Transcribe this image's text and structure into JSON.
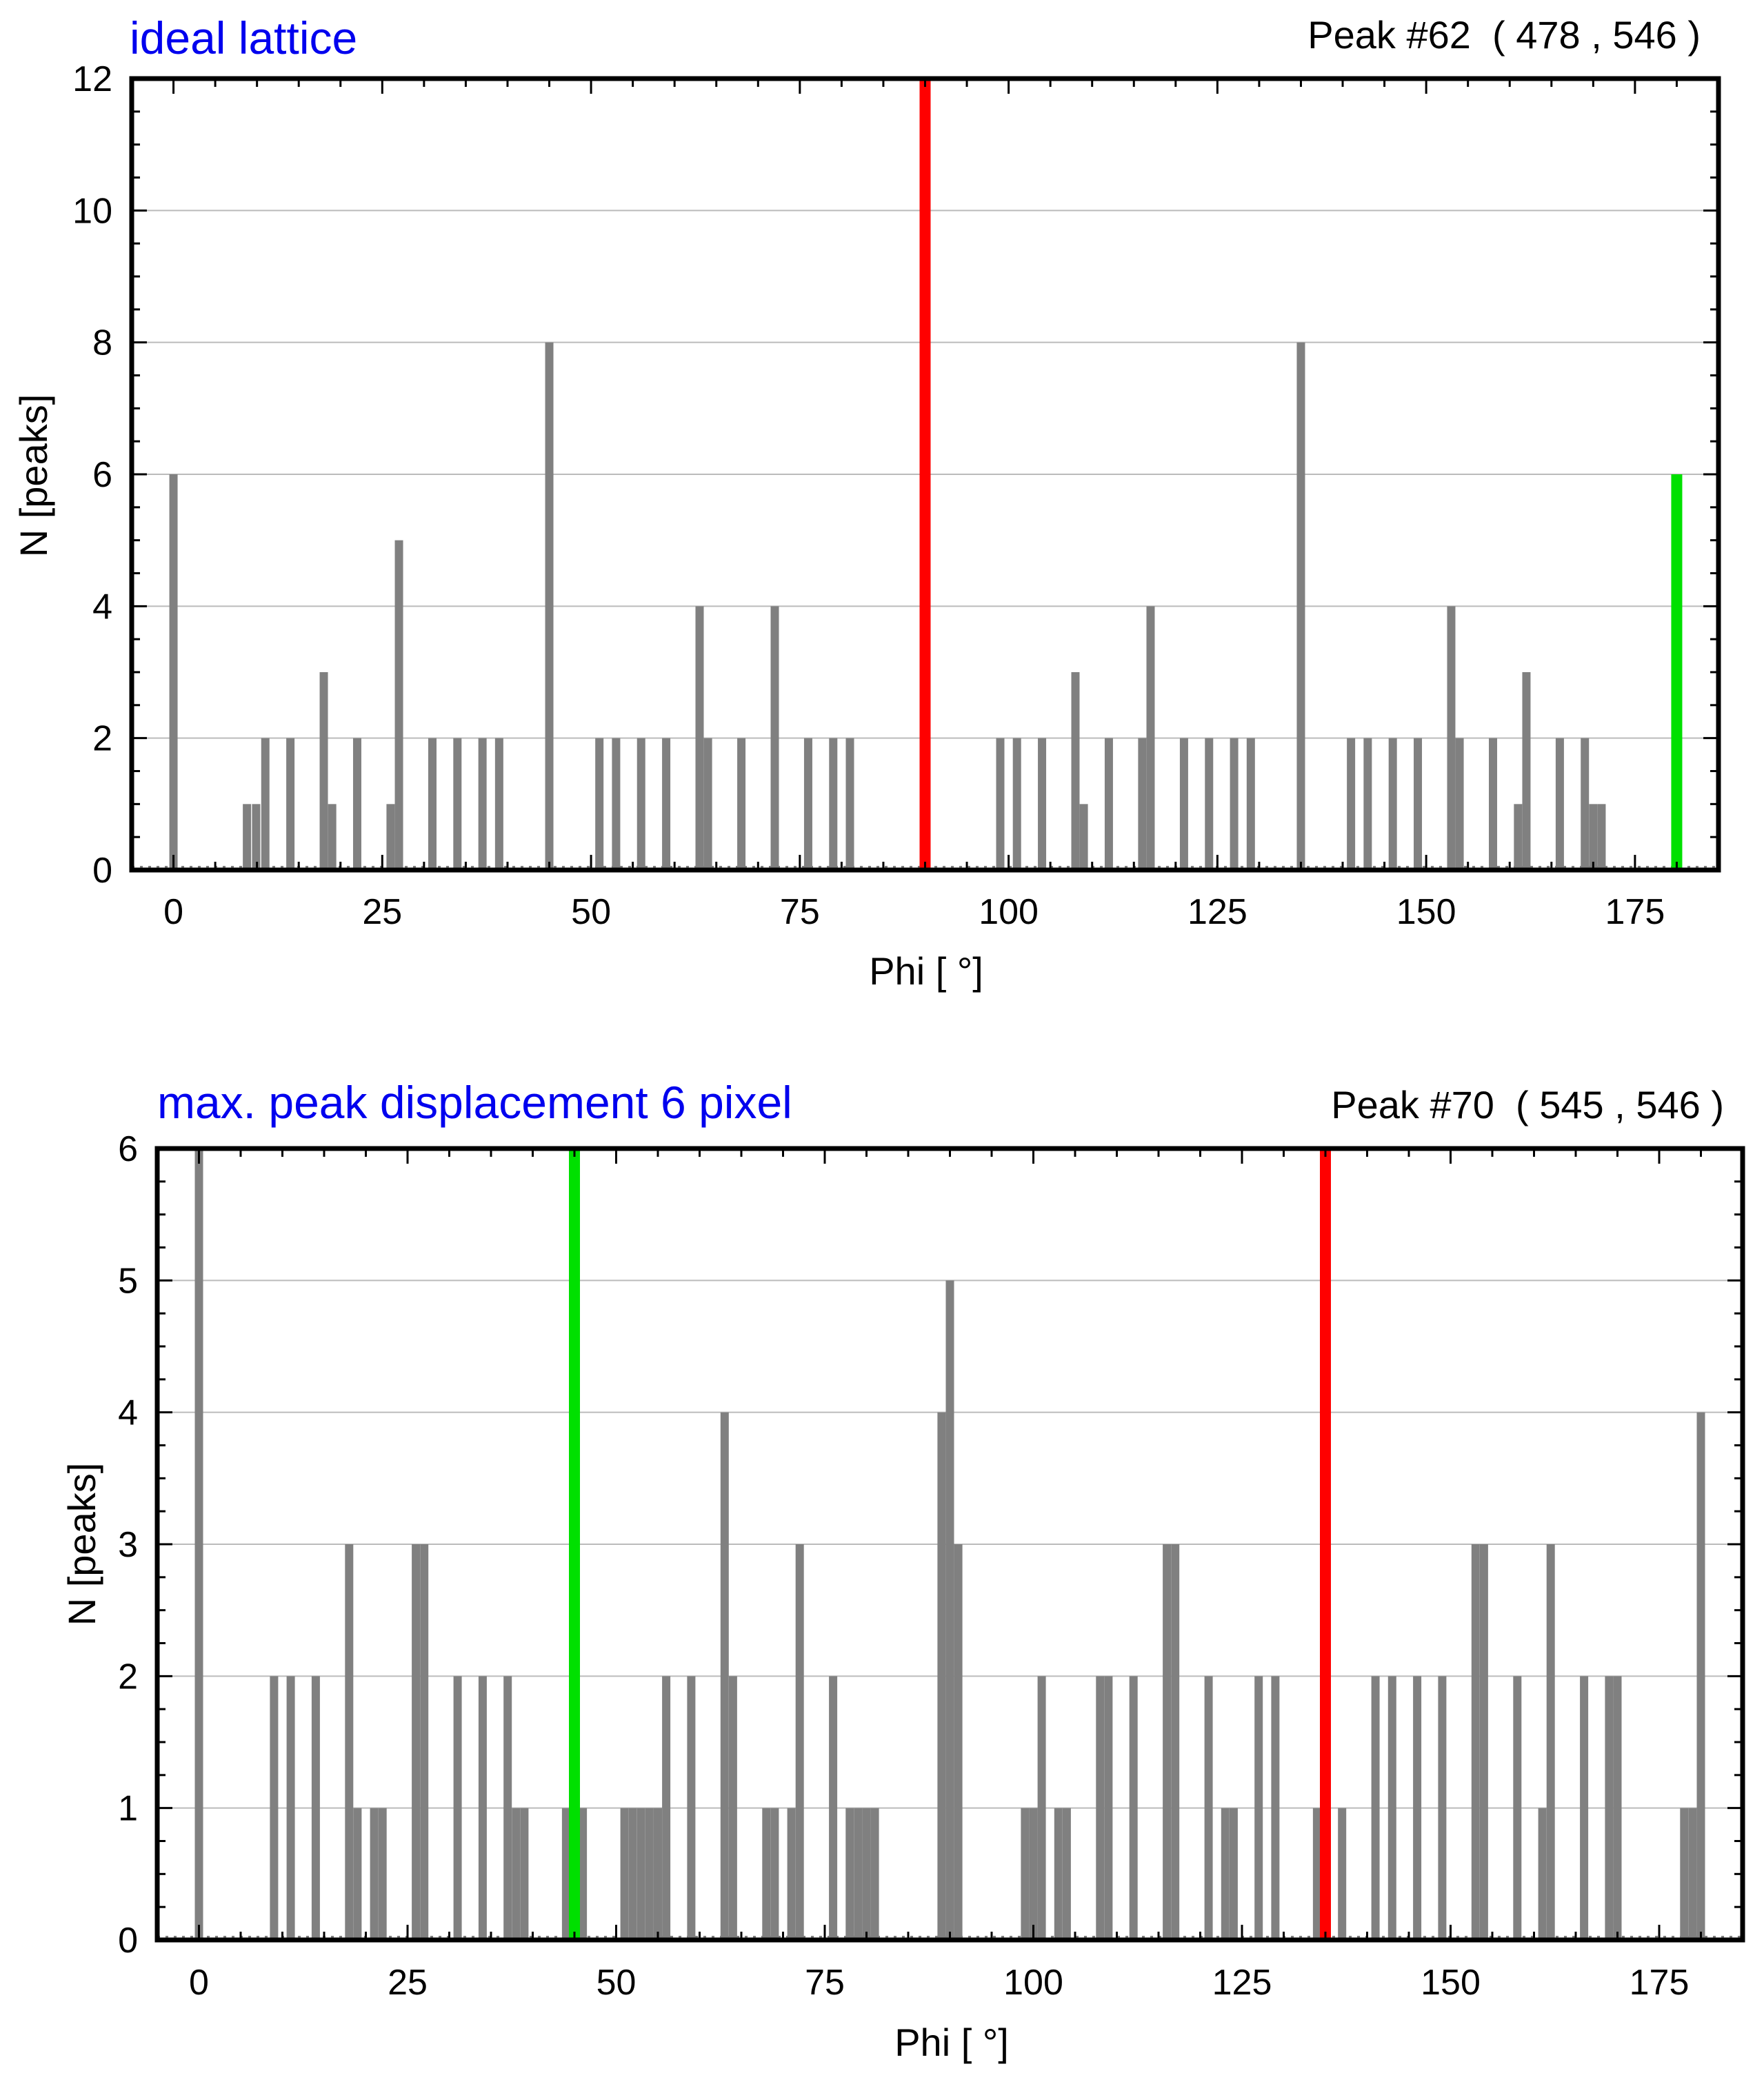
{
  "chart_data": [
    {
      "type": "bar",
      "title": "ideal lattice",
      "annotation": "Peak #62  ( 478 , 546 )",
      "xlabel": "Phi [ °]",
      "ylabel": "N [peaks]",
      "xlim": [
        -5,
        185
      ],
      "ylim": [
        0,
        12
      ],
      "xticks": [
        0,
        25,
        50,
        75,
        100,
        125,
        150,
        175
      ],
      "yticks": [
        0,
        2,
        4,
        6,
        8,
        10,
        12
      ],
      "grid": true,
      "colors": {
        "bar": "#808080",
        "red": "#ff0000",
        "green": "#00e000",
        "title": "#0000ee",
        "axis": "#000000",
        "grid": "#bbbbbb"
      },
      "bars": [
        {
          "x": 0,
          "y": 6
        },
        {
          "x": 8.8,
          "y": 1
        },
        {
          "x": 9.9,
          "y": 1
        },
        {
          "x": 11,
          "y": 2
        },
        {
          "x": 14,
          "y": 2
        },
        {
          "x": 18,
          "y": 3
        },
        {
          "x": 19,
          "y": 1
        },
        {
          "x": 22,
          "y": 2
        },
        {
          "x": 26,
          "y": 1
        },
        {
          "x": 27,
          "y": 5
        },
        {
          "x": 31,
          "y": 2
        },
        {
          "x": 34,
          "y": 2
        },
        {
          "x": 37,
          "y": 2
        },
        {
          "x": 39,
          "y": 2
        },
        {
          "x": 45,
          "y": 8
        },
        {
          "x": 51,
          "y": 2
        },
        {
          "x": 53,
          "y": 2
        },
        {
          "x": 56,
          "y": 2
        },
        {
          "x": 59,
          "y": 2
        },
        {
          "x": 63,
          "y": 4
        },
        {
          "x": 64,
          "y": 2
        },
        {
          "x": 68,
          "y": 2
        },
        {
          "x": 72,
          "y": 4
        },
        {
          "x": 76,
          "y": 2
        },
        {
          "x": 79,
          "y": 2
        },
        {
          "x": 81,
          "y": 2
        },
        {
          "x": 99,
          "y": 2
        },
        {
          "x": 101,
          "y": 2
        },
        {
          "x": 104,
          "y": 2
        },
        {
          "x": 108,
          "y": 3
        },
        {
          "x": 109,
          "y": 1
        },
        {
          "x": 112,
          "y": 2
        },
        {
          "x": 116,
          "y": 2
        },
        {
          "x": 117,
          "y": 4
        },
        {
          "x": 121,
          "y": 2
        },
        {
          "x": 124,
          "y": 2
        },
        {
          "x": 127,
          "y": 2
        },
        {
          "x": 129,
          "y": 2
        },
        {
          "x": 135,
          "y": 8
        },
        {
          "x": 141,
          "y": 2
        },
        {
          "x": 143,
          "y": 2
        },
        {
          "x": 146,
          "y": 2
        },
        {
          "x": 149,
          "y": 2
        },
        {
          "x": 153,
          "y": 4
        },
        {
          "x": 154,
          "y": 2
        },
        {
          "x": 158,
          "y": 2
        },
        {
          "x": 161,
          "y": 1
        },
        {
          "x": 162,
          "y": 3
        },
        {
          "x": 166,
          "y": 2
        },
        {
          "x": 169,
          "y": 2
        },
        {
          "x": 170,
          "y": 1
        },
        {
          "x": 171,
          "y": 1
        }
      ],
      "markers": [
        {
          "x": 90,
          "y": 12,
          "color": "red"
        },
        {
          "x": 180,
          "y": 6,
          "color": "green"
        }
      ]
    },
    {
      "type": "bar",
      "title": "max. peak displacement 6 pixel",
      "annotation": "Peak #70  ( 545 , 546 )",
      "xlabel": "Phi [ °]",
      "ylabel": "N [peaks]",
      "xlim": [
        -5,
        185
      ],
      "ylim": [
        0,
        6
      ],
      "xticks": [
        0,
        25,
        50,
        75,
        100,
        125,
        150,
        175
      ],
      "yticks": [
        0,
        1,
        2,
        3,
        4,
        5,
        6
      ],
      "grid": true,
      "colors": {
        "bar": "#808080",
        "red": "#ff0000",
        "green": "#00e000",
        "title": "#0000ee",
        "axis": "#000000",
        "grid": "#bbbbbb"
      },
      "bars": [
        {
          "x": 0,
          "y": 6
        },
        {
          "x": 9,
          "y": 2
        },
        {
          "x": 11,
          "y": 2
        },
        {
          "x": 14,
          "y": 2
        },
        {
          "x": 18,
          "y": 3
        },
        {
          "x": 19,
          "y": 1
        },
        {
          "x": 21,
          "y": 1
        },
        {
          "x": 22,
          "y": 1
        },
        {
          "x": 26,
          "y": 3
        },
        {
          "x": 27,
          "y": 3
        },
        {
          "x": 31,
          "y": 2
        },
        {
          "x": 34,
          "y": 2
        },
        {
          "x": 37,
          "y": 2
        },
        {
          "x": 38,
          "y": 1
        },
        {
          "x": 39,
          "y": 1
        },
        {
          "x": 44,
          "y": 1
        },
        {
          "x": 46,
          "y": 1
        },
        {
          "x": 51,
          "y": 1
        },
        {
          "x": 52,
          "y": 1
        },
        {
          "x": 53,
          "y": 1
        },
        {
          "x": 54,
          "y": 1
        },
        {
          "x": 55,
          "y": 1
        },
        {
          "x": 56,
          "y": 2
        },
        {
          "x": 59,
          "y": 2
        },
        {
          "x": 63,
          "y": 4
        },
        {
          "x": 64,
          "y": 2
        },
        {
          "x": 68,
          "y": 1
        },
        {
          "x": 69,
          "y": 1
        },
        {
          "x": 71,
          "y": 1
        },
        {
          "x": 72,
          "y": 3
        },
        {
          "x": 76,
          "y": 2
        },
        {
          "x": 78,
          "y": 1
        },
        {
          "x": 79,
          "y": 1
        },
        {
          "x": 80,
          "y": 1
        },
        {
          "x": 81,
          "y": 1
        },
        {
          "x": 89,
          "y": 4
        },
        {
          "x": 90,
          "y": 5
        },
        {
          "x": 91,
          "y": 3
        },
        {
          "x": 99,
          "y": 1
        },
        {
          "x": 100,
          "y": 1
        },
        {
          "x": 101,
          "y": 2
        },
        {
          "x": 103,
          "y": 1
        },
        {
          "x": 104,
          "y": 1
        },
        {
          "x": 108,
          "y": 2
        },
        {
          "x": 109,
          "y": 2
        },
        {
          "x": 112,
          "y": 2
        },
        {
          "x": 116,
          "y": 3
        },
        {
          "x": 117,
          "y": 3
        },
        {
          "x": 121,
          "y": 2
        },
        {
          "x": 123,
          "y": 1
        },
        {
          "x": 124,
          "y": 1
        },
        {
          "x": 127,
          "y": 2
        },
        {
          "x": 129,
          "y": 2
        },
        {
          "x": 134,
          "y": 1
        },
        {
          "x": 137,
          "y": 1
        },
        {
          "x": 141,
          "y": 2
        },
        {
          "x": 143,
          "y": 2
        },
        {
          "x": 146,
          "y": 2
        },
        {
          "x": 149,
          "y": 2
        },
        {
          "x": 153,
          "y": 3
        },
        {
          "x": 154,
          "y": 3
        },
        {
          "x": 158,
          "y": 2
        },
        {
          "x": 161,
          "y": 1
        },
        {
          "x": 162,
          "y": 3
        },
        {
          "x": 166,
          "y": 2
        },
        {
          "x": 169,
          "y": 2
        },
        {
          "x": 170,
          "y": 2
        },
        {
          "x": 178,
          "y": 1
        },
        {
          "x": 179,
          "y": 1
        },
        {
          "x": 180,
          "y": 4
        }
      ],
      "markers": [
        {
          "x": 45,
          "y": 6,
          "color": "green"
        },
        {
          "x": 135,
          "y": 6,
          "color": "red"
        }
      ]
    }
  ]
}
